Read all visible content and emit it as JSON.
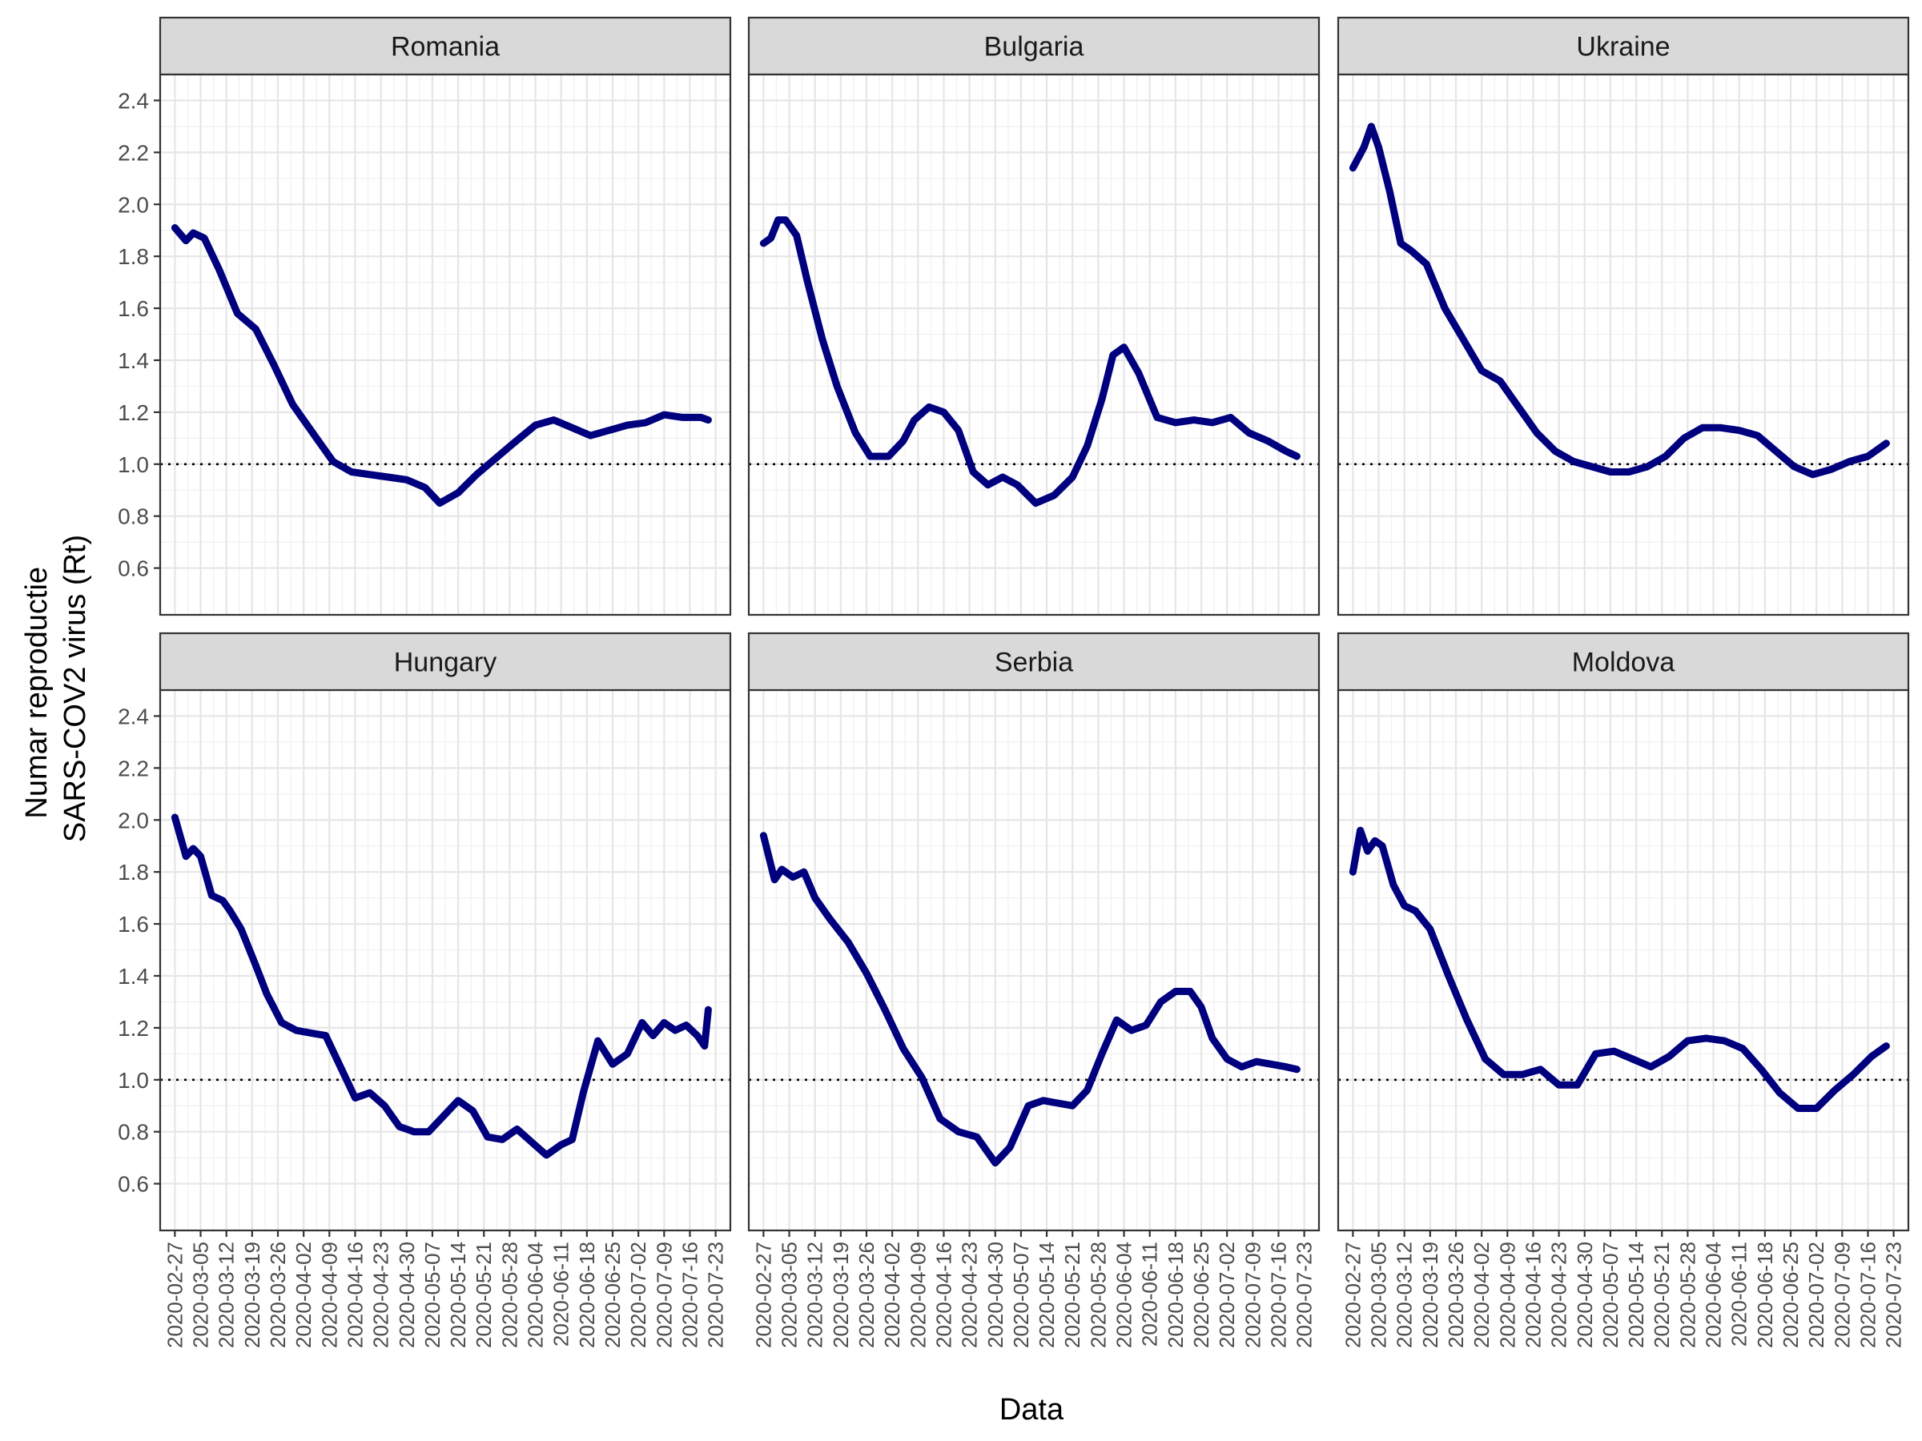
{
  "chart_data": {
    "type": "line",
    "layout": "facet-grid 2 rows x 3 columns",
    "xlabel": "Data",
    "ylabel_lines": [
      "Numar reproductie",
      "SARS-COV2 virus (Rt)"
    ],
    "x_ticks": [
      "2020-02-27",
      "2020-03-05",
      "2020-03-12",
      "2020-03-19",
      "2020-03-26",
      "2020-04-02",
      "2020-04-09",
      "2020-04-16",
      "2020-04-23",
      "2020-04-30",
      "2020-05-07",
      "2020-05-14",
      "2020-05-21",
      "2020-05-28",
      "2020-06-04",
      "2020-06-11",
      "2020-06-18",
      "2020-06-25",
      "2020-07-02",
      "2020-07-09",
      "2020-07-16",
      "2020-07-23"
    ],
    "xlim": [
      "2020-02-23",
      "2020-07-27"
    ],
    "y_ticks": [
      "0.6",
      "0.8",
      "1.0",
      "1.2",
      "1.4",
      "1.6",
      "1.8",
      "2.0",
      "2.2",
      "2.4"
    ],
    "ylim": [
      0.42,
      2.5
    ],
    "reference_line": {
      "y": 1.0,
      "style": "dotted",
      "color": "#000000"
    },
    "grid": true,
    "theme": "bw",
    "line_color": "#00007f",
    "strip_fill": "#d9d9d9",
    "facets": [
      {
        "name": "Romania",
        "x": [
          "2020-02-27",
          "2020-03-01",
          "2020-03-03",
          "2020-03-06",
          "2020-03-10",
          "2020-03-15",
          "2020-03-20",
          "2020-03-25",
          "2020-03-30",
          "2020-04-05",
          "2020-04-10",
          "2020-04-15",
          "2020-04-20",
          "2020-04-25",
          "2020-04-30",
          "2020-05-05",
          "2020-05-09",
          "2020-05-14",
          "2020-05-19",
          "2020-05-24",
          "2020-05-29",
          "2020-06-04",
          "2020-06-09",
          "2020-06-14",
          "2020-06-19",
          "2020-06-24",
          "2020-06-29",
          "2020-07-04",
          "2020-07-09",
          "2020-07-14",
          "2020-07-19",
          "2020-07-21"
        ],
        "y": [
          1.91,
          1.86,
          1.89,
          1.87,
          1.75,
          1.58,
          1.52,
          1.38,
          1.23,
          1.11,
          1.01,
          0.97,
          0.96,
          0.95,
          0.94,
          0.91,
          0.85,
          0.89,
          0.96,
          1.02,
          1.08,
          1.15,
          1.17,
          1.14,
          1.11,
          1.13,
          1.15,
          1.16,
          1.19,
          1.18,
          1.18,
          1.17
        ]
      },
      {
        "name": "Bulgaria",
        "x": [
          "2020-02-27",
          "2020-02-29",
          "2020-03-02",
          "2020-03-04",
          "2020-03-07",
          "2020-03-10",
          "2020-03-14",
          "2020-03-18",
          "2020-03-23",
          "2020-03-27",
          "2020-04-01",
          "2020-04-05",
          "2020-04-08",
          "2020-04-12",
          "2020-04-16",
          "2020-04-20",
          "2020-04-24",
          "2020-04-28",
          "2020-05-02",
          "2020-05-06",
          "2020-05-11",
          "2020-05-16",
          "2020-05-21",
          "2020-05-25",
          "2020-05-29",
          "2020-06-01",
          "2020-06-04",
          "2020-06-08",
          "2020-06-13",
          "2020-06-18",
          "2020-06-23",
          "2020-06-28",
          "2020-07-03",
          "2020-07-08",
          "2020-07-13",
          "2020-07-18",
          "2020-07-21"
        ],
        "y": [
          1.85,
          1.87,
          1.94,
          1.94,
          1.88,
          1.7,
          1.48,
          1.3,
          1.12,
          1.03,
          1.03,
          1.09,
          1.17,
          1.22,
          1.2,
          1.13,
          0.97,
          0.92,
          0.95,
          0.92,
          0.85,
          0.88,
          0.95,
          1.07,
          1.25,
          1.42,
          1.45,
          1.35,
          1.18,
          1.16,
          1.17,
          1.16,
          1.18,
          1.12,
          1.09,
          1.05,
          1.03
        ]
      },
      {
        "name": "Ukraine",
        "x": [
          "2020-02-27",
          "2020-03-01",
          "2020-03-03",
          "2020-03-05",
          "2020-03-08",
          "2020-03-11",
          "2020-03-14",
          "2020-03-18",
          "2020-03-23",
          "2020-03-28",
          "2020-04-02",
          "2020-04-07",
          "2020-04-12",
          "2020-04-17",
          "2020-04-22",
          "2020-04-27",
          "2020-05-02",
          "2020-05-07",
          "2020-05-12",
          "2020-05-17",
          "2020-05-22",
          "2020-05-27",
          "2020-06-01",
          "2020-06-06",
          "2020-06-11",
          "2020-06-16",
          "2020-06-21",
          "2020-06-26",
          "2020-07-01",
          "2020-07-06",
          "2020-07-11",
          "2020-07-16",
          "2020-07-21"
        ],
        "y": [
          2.14,
          2.22,
          2.3,
          2.22,
          2.05,
          1.85,
          1.82,
          1.77,
          1.6,
          1.48,
          1.36,
          1.32,
          1.22,
          1.12,
          1.05,
          1.01,
          0.99,
          0.97,
          0.97,
          0.99,
          1.03,
          1.1,
          1.14,
          1.14,
          1.13,
          1.11,
          1.05,
          0.99,
          0.96,
          0.98,
          1.01,
          1.03,
          1.08
        ]
      },
      {
        "name": "Hungary",
        "x": [
          "2020-02-27",
          "2020-03-01",
          "2020-03-03",
          "2020-03-05",
          "2020-03-08",
          "2020-03-11",
          "2020-03-13",
          "2020-03-16",
          "2020-03-20",
          "2020-03-23",
          "2020-03-27",
          "2020-03-31",
          "2020-04-04",
          "2020-04-08",
          "2020-04-12",
          "2020-04-16",
          "2020-04-20",
          "2020-04-24",
          "2020-04-28",
          "2020-05-02",
          "2020-05-06",
          "2020-05-10",
          "2020-05-14",
          "2020-05-18",
          "2020-05-22",
          "2020-05-26",
          "2020-05-30",
          "2020-06-03",
          "2020-06-07",
          "2020-06-11",
          "2020-06-14",
          "2020-06-17",
          "2020-06-21",
          "2020-06-25",
          "2020-06-29",
          "2020-07-03",
          "2020-07-06",
          "2020-07-09",
          "2020-07-12",
          "2020-07-15",
          "2020-07-18",
          "2020-07-20",
          "2020-07-21"
        ],
        "y": [
          2.01,
          1.86,
          1.89,
          1.86,
          1.71,
          1.69,
          1.65,
          1.58,
          1.44,
          1.33,
          1.22,
          1.19,
          1.18,
          1.17,
          1.05,
          0.93,
          0.95,
          0.9,
          0.82,
          0.8,
          0.8,
          0.86,
          0.92,
          0.88,
          0.78,
          0.77,
          0.81,
          0.76,
          0.71,
          0.75,
          0.77,
          0.95,
          1.15,
          1.06,
          1.1,
          1.22,
          1.17,
          1.22,
          1.19,
          1.21,
          1.17,
          1.13,
          1.27
        ]
      },
      {
        "name": "Serbia",
        "x": [
          "2020-02-27",
          "2020-03-01",
          "2020-03-03",
          "2020-03-06",
          "2020-03-09",
          "2020-03-12",
          "2020-03-16",
          "2020-03-21",
          "2020-03-26",
          "2020-03-31",
          "2020-04-05",
          "2020-04-10",
          "2020-04-15",
          "2020-04-20",
          "2020-04-25",
          "2020-04-30",
          "2020-05-04",
          "2020-05-09",
          "2020-05-13",
          "2020-05-17",
          "2020-05-21",
          "2020-05-25",
          "2020-05-29",
          "2020-06-02",
          "2020-06-06",
          "2020-06-10",
          "2020-06-14",
          "2020-06-18",
          "2020-06-22",
          "2020-06-25",
          "2020-06-28",
          "2020-07-02",
          "2020-07-06",
          "2020-07-10",
          "2020-07-14",
          "2020-07-18",
          "2020-07-21"
        ],
        "y": [
          1.94,
          1.77,
          1.81,
          1.78,
          1.8,
          1.7,
          1.62,
          1.53,
          1.41,
          1.27,
          1.12,
          1.01,
          0.85,
          0.8,
          0.78,
          0.68,
          0.74,
          0.9,
          0.92,
          0.91,
          0.9,
          0.96,
          1.1,
          1.23,
          1.19,
          1.21,
          1.3,
          1.34,
          1.34,
          1.28,
          1.16,
          1.08,
          1.05,
          1.07,
          1.06,
          1.05,
          1.04
        ]
      },
      {
        "name": "Moldova",
        "x": [
          "2020-02-27",
          "2020-02-29",
          "2020-03-02",
          "2020-03-04",
          "2020-03-06",
          "2020-03-09",
          "2020-03-12",
          "2020-03-15",
          "2020-03-19",
          "2020-03-24",
          "2020-03-29",
          "2020-04-03",
          "2020-04-08",
          "2020-04-13",
          "2020-04-18",
          "2020-04-23",
          "2020-04-28",
          "2020-05-03",
          "2020-05-08",
          "2020-05-13",
          "2020-05-18",
          "2020-05-23",
          "2020-05-28",
          "2020-06-02",
          "2020-06-07",
          "2020-06-12",
          "2020-06-17",
          "2020-06-22",
          "2020-06-27",
          "2020-07-02",
          "2020-07-07",
          "2020-07-12",
          "2020-07-17",
          "2020-07-21"
        ],
        "y": [
          1.8,
          1.96,
          1.88,
          1.92,
          1.9,
          1.75,
          1.67,
          1.65,
          1.58,
          1.4,
          1.23,
          1.08,
          1.02,
          1.02,
          1.04,
          0.98,
          0.98,
          1.1,
          1.11,
          1.08,
          1.05,
          1.09,
          1.15,
          1.16,
          1.15,
          1.12,
          1.04,
          0.95,
          0.89,
          0.89,
          0.96,
          1.02,
          1.09,
          1.13
        ]
      }
    ]
  }
}
